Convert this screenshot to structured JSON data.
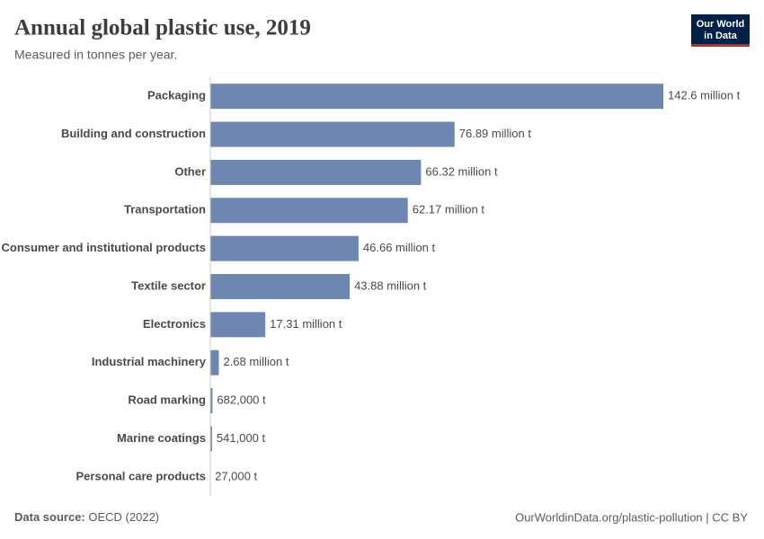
{
  "chart_data": {
    "type": "bar",
    "orientation": "horizontal",
    "title": "Annual global plastic use, 2019",
    "subtitle": "Measured in tonnes per year.",
    "logo": [
      "Our World",
      "in Data"
    ],
    "source_label": "Data source:",
    "source": "OECD (2022)",
    "footer_right": "OurWorldinData.org/plastic-pollution | CC BY",
    "color": "#6d87b0",
    "xlim": [
      0,
      142600000
    ],
    "categories": [
      "Packaging",
      "Building and construction",
      "Other",
      "Transportation",
      "Consumer and institutional products",
      "Textile sector",
      "Electronics",
      "Industrial machinery",
      "Road marking",
      "Marine coatings",
      "Personal care products"
    ],
    "values": [
      142600000,
      76890000,
      66320000,
      62170000,
      46660000,
      43880000,
      17310000,
      2680000,
      682000,
      541000,
      27000
    ],
    "value_labels": [
      "142.6 million t",
      "76.89 million t",
      "66.32 million t",
      "62.17 million t",
      "46.66 million t",
      "43.88 million t",
      "17.31 million t",
      "2.68 million t",
      "682,000 t",
      "541,000 t",
      "27,000 t"
    ]
  }
}
